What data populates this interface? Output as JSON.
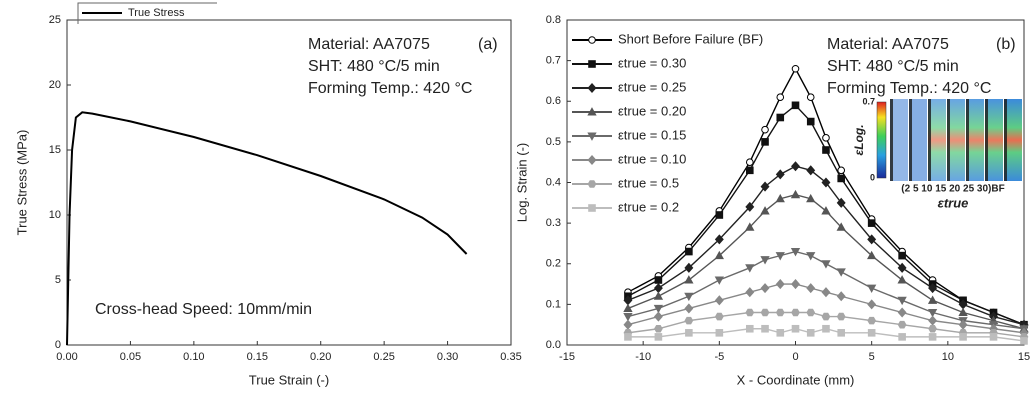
{
  "chart_data": [
    {
      "type": "line",
      "x_label": "True Strain (-)",
      "y_label": "True Stress (MPa)",
      "annotations": [
        "Material: AA7075",
        "SHT: 480 °C/5 min",
        "Forming Temp.: 420 °C",
        "(a)",
        "Cross-head Speed: 10mm/min"
      ],
      "legend": "upper left",
      "series": [
        {
          "name": "True Stress",
          "color": "#000000",
          "x": [
            0,
            0.002,
            0.004,
            0.007,
            0.012,
            0.02,
            0.05,
            0.1,
            0.15,
            0.2,
            0.25,
            0.28,
            0.3,
            0.315
          ],
          "values": [
            0,
            10,
            15,
            17.5,
            17.9,
            17.8,
            17.2,
            16.0,
            14.6,
            13.0,
            11.2,
            9.8,
            8.5,
            7.0
          ]
        }
      ],
      "xlim": [
        0,
        0.35
      ],
      "xticks": [
        {
          "value": 0,
          "label": "0.00"
        },
        {
          "value": 0.05,
          "label": "0.05"
        },
        {
          "value": 0.1,
          "label": "0.10"
        },
        {
          "value": 0.15,
          "label": "0.15"
        },
        {
          "value": 0.2,
          "label": "0.20"
        },
        {
          "value": 0.25,
          "label": "0.25"
        },
        {
          "value": 0.3,
          "label": "0.30"
        },
        {
          "value": 0.35,
          "label": "0.35"
        }
      ],
      "ylim": [
        0,
        25
      ],
      "yticks": [
        0,
        5,
        10,
        15,
        20,
        25
      ]
    },
    {
      "type": "line",
      "x_label": "X - Coordinate (mm)",
      "y_label": "Log. Strain (-)",
      "annotations": [
        "Material: AA7075",
        "SHT: 480 °C/5 min",
        "Forming Temp.: 420 °C",
        "(b)"
      ],
      "legend": "upper left",
      "x": [
        -11,
        -9,
        -7,
        -5,
        -3,
        -2,
        -1,
        0,
        1,
        2,
        3,
        5,
        7,
        9,
        11,
        13,
        15
      ],
      "series": [
        {
          "name": "Short Before Failure (BF)",
          "color": "#000000",
          "marker": "circle",
          "values": [
            0.13,
            0.17,
            0.24,
            0.33,
            0.45,
            0.53,
            0.61,
            0.68,
            0.61,
            0.51,
            0.43,
            0.31,
            0.23,
            0.16,
            0.11,
            0.08,
            0.05
          ]
        },
        {
          "name": "εtrue = 0.30",
          "color": "#111111",
          "marker": "square",
          "values": [
            0.12,
            0.16,
            0.23,
            0.32,
            0.43,
            0.5,
            0.56,
            0.59,
            0.55,
            0.48,
            0.41,
            0.3,
            0.22,
            0.15,
            0.11,
            0.08,
            0.05
          ]
        },
        {
          "name": "εtrue = 0.25",
          "color": "#222222",
          "marker": "diamond",
          "values": [
            0.11,
            0.14,
            0.19,
            0.26,
            0.34,
            0.39,
            0.42,
            0.44,
            0.43,
            0.4,
            0.35,
            0.26,
            0.19,
            0.14,
            0.1,
            0.07,
            0.05
          ]
        },
        {
          "name": "εtrue = 0.20",
          "color": "#555555",
          "marker": "triangle",
          "values": [
            0.09,
            0.12,
            0.16,
            0.22,
            0.29,
            0.33,
            0.36,
            0.37,
            0.36,
            0.33,
            0.29,
            0.22,
            0.16,
            0.11,
            0.08,
            0.06,
            0.04
          ]
        },
        {
          "name": "εtrue = 0.15",
          "color": "#6a6a6a",
          "marker": "triangle-down",
          "values": [
            0.07,
            0.09,
            0.12,
            0.16,
            0.19,
            0.21,
            0.22,
            0.23,
            0.22,
            0.2,
            0.18,
            0.14,
            0.11,
            0.08,
            0.06,
            0.05,
            0.04
          ]
        },
        {
          "name": "εtrue = 0.10",
          "color": "#888888",
          "marker": "diamond",
          "values": [
            0.05,
            0.07,
            0.09,
            0.11,
            0.13,
            0.14,
            0.15,
            0.15,
            0.14,
            0.13,
            0.12,
            0.1,
            0.08,
            0.06,
            0.05,
            0.04,
            0.03
          ]
        },
        {
          "name": "εtrue = 0.5",
          "color": "#a6a6a6",
          "marker": "hexagon",
          "values": [
            0.03,
            0.04,
            0.06,
            0.07,
            0.08,
            0.08,
            0.08,
            0.08,
            0.08,
            0.07,
            0.07,
            0.06,
            0.05,
            0.04,
            0.03,
            0.03,
            0.02
          ]
        },
        {
          "name": "εtrue = 0.2",
          "color": "#bdbdbd",
          "marker": "square",
          "values": [
            0.02,
            0.02,
            0.03,
            0.03,
            0.04,
            0.04,
            0.03,
            0.04,
            0.03,
            0.04,
            0.03,
            0.03,
            0.02,
            0.02,
            0.02,
            0.02,
            0.01
          ]
        }
      ],
      "xlim": [
        -15,
        15
      ],
      "xticks": [
        -15,
        -10,
        -5,
        0,
        5,
        10,
        15
      ],
      "ylim": [
        0,
        0.8
      ],
      "yticks": [
        {
          "value": 0,
          "label": "0.0"
        },
        {
          "value": 0.1,
          "label": "0.1"
        },
        {
          "value": 0.2,
          "label": "0.2"
        },
        {
          "value": 0.3,
          "label": "0.3"
        },
        {
          "value": 0.4,
          "label": "0.4"
        },
        {
          "value": 0.5,
          "label": "0.5"
        },
        {
          "value": 0.6,
          "label": "0.6"
        },
        {
          "value": 0.7,
          "label": "0.7"
        },
        {
          "value": 0.8,
          "label": "0.8"
        }
      ],
      "inset": {
        "colorbar_label": "εLog.",
        "colorbar_ticks": [
          {
            "value": 0.7,
            "label": "0.7"
          },
          0
        ],
        "x_tick_text": "(2 5 10 15 20 25 30)BF",
        "x_label": "εtrue"
      }
    }
  ]
}
